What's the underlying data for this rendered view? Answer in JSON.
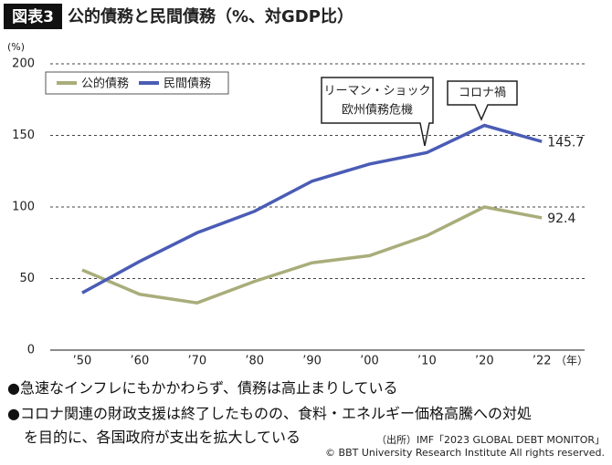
{
  "chart_data": {
    "type": "line",
    "figure_label": "図表3",
    "title": "公的債務と民間債務（%、対GDP比）",
    "y_unit": "(%)",
    "x_unit": "（年）",
    "categories": [
      "’50",
      "’60",
      "’70",
      "’80",
      "’90",
      "’00",
      "’10",
      "’20",
      "’22"
    ],
    "series": [
      {
        "name": "公的債務",
        "color": "#a9ad7a",
        "values": [
          56,
          39,
          33,
          48,
          61,
          66,
          80,
          100,
          92.4
        ]
      },
      {
        "name": "民間債務",
        "color": "#4a5cb5",
        "values": [
          40,
          62,
          82,
          97,
          118,
          130,
          138,
          157,
          145.7
        ]
      }
    ],
    "ylim": [
      0,
      200
    ],
    "yticks": [
      0,
      50,
      100,
      150,
      200
    ],
    "grid": true,
    "annotations": [
      {
        "lines": [
          "リーマン・ショック",
          "欧州債務危機"
        ]
      },
      {
        "lines": [
          "コロナ禍"
        ]
      }
    ],
    "notes": [
      "●急速なインフレにもかかわらず、債務は高止まりしている",
      "●コロナ関連の財政支援は終了したものの、食料・エネルギー価格高騰への対処",
      "を目的に、各国政府が支出を拡大している"
    ],
    "source": "（出所）IMF「2023 GLOBAL DEBT MONITOR」",
    "copyright": "© BBT University Research Institute All rights reserved."
  }
}
